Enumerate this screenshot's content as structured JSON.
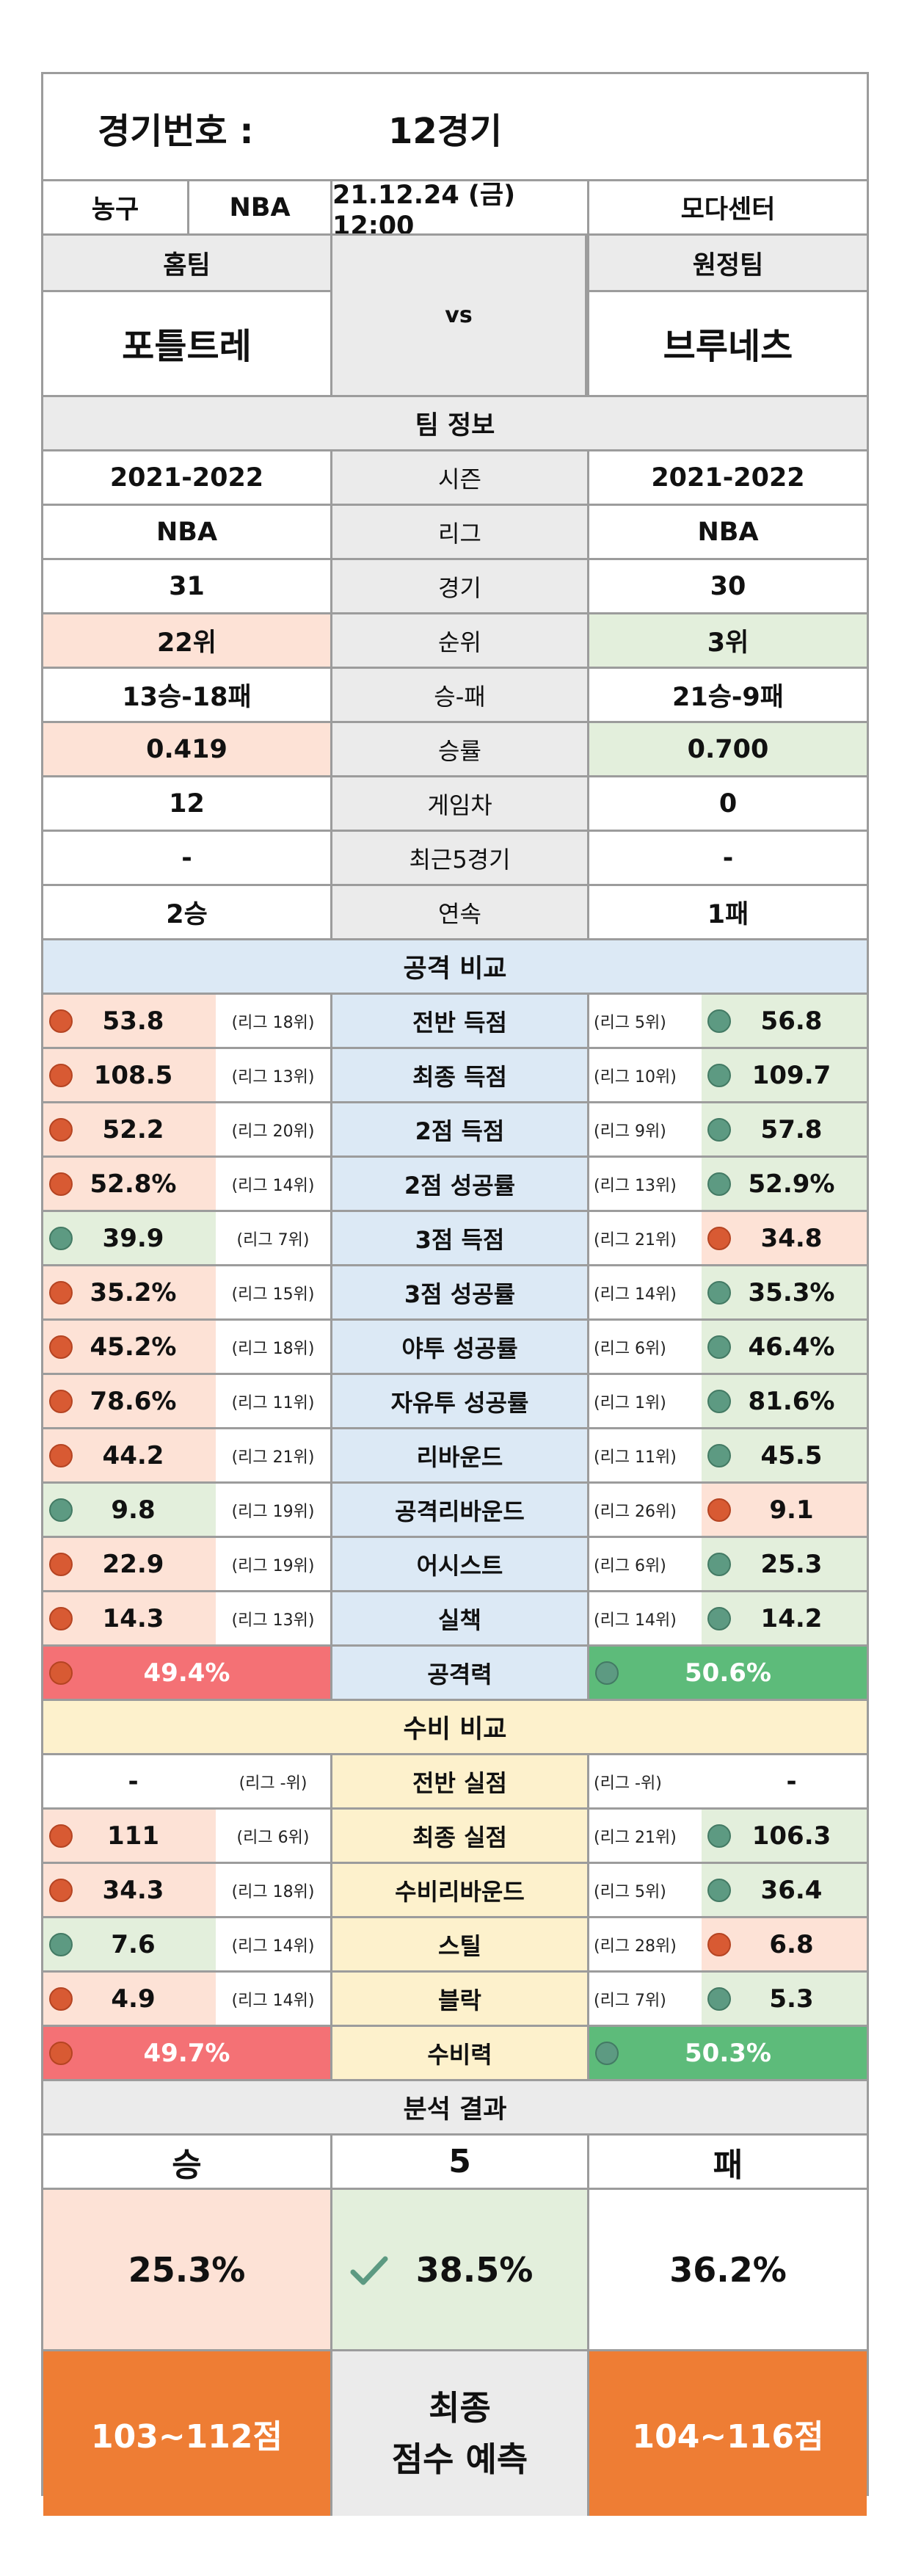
{
  "header": {
    "label": "경기번호 :",
    "game_no": "12경기"
  },
  "info": {
    "sport": "농구",
    "league": "NBA",
    "datetime": "21.12.24 (금) 12:00",
    "venue": "모다센터"
  },
  "teams": {
    "home_label": "홈팀",
    "away_label": "원정팀",
    "home": "포틀트레",
    "vs": "vs",
    "away": "브루네츠"
  },
  "team_info": {
    "title": "팀 정보",
    "rows": [
      {
        "label": "시즌",
        "home": "2021-2022",
        "away": "2021-2022"
      },
      {
        "label": "리그",
        "home": "NBA",
        "away": "NBA"
      },
      {
        "label": "경기",
        "home": "31",
        "away": "30"
      },
      {
        "label": "순위",
        "home": "22위",
        "away": "3위"
      },
      {
        "label": "승-패",
        "home": "13승-18패",
        "away": "21승-9패"
      },
      {
        "label": "승률",
        "home": "0.419",
        "away": "0.700"
      },
      {
        "label": "게임차",
        "home": "12",
        "away": "0"
      },
      {
        "label": "최근5경기",
        "home": "-",
        "away": "-"
      },
      {
        "label": "연속",
        "home": "2승",
        "away": "1패"
      }
    ]
  },
  "attack": {
    "title": "공격 비교",
    "rows": [
      {
        "label": "전반 득점",
        "home": "53.8",
        "home_rank": "(리그 18위)",
        "away": "56.8",
        "away_rank": "(리그 5위)"
      },
      {
        "label": "최종 득점",
        "home": "108.5",
        "home_rank": "(리그 13위)",
        "away": "109.7",
        "away_rank": "(리그 10위)"
      },
      {
        "label": "2점 득점",
        "home": "52.2",
        "home_rank": "(리그 20위)",
        "away": "57.8",
        "away_rank": "(리그 9위)"
      },
      {
        "label": "2점 성공률",
        "home": "52.8%",
        "home_rank": "(리그 14위)",
        "away": "52.9%",
        "away_rank": "(리그 13위)"
      },
      {
        "label": "3점 득점",
        "home": "39.9",
        "home_rank": "(리그 7위)",
        "away": "34.8",
        "away_rank": "(리그 21위)"
      },
      {
        "label": "3점 성공률",
        "home": "35.2%",
        "home_rank": "(리그 15위)",
        "away": "35.3%",
        "away_rank": "(리그 14위)"
      },
      {
        "label": "야투 성공률",
        "home": "45.2%",
        "home_rank": "(리그 18위)",
        "away": "46.4%",
        "away_rank": "(리그 6위)"
      },
      {
        "label": "자유투 성공률",
        "home": "78.6%",
        "home_rank": "(리그 11위)",
        "away": "81.6%",
        "away_rank": "(리그 1위)"
      },
      {
        "label": "리바운드",
        "home": "44.2",
        "home_rank": "(리그 21위)",
        "away": "45.5",
        "away_rank": "(리그 11위)"
      },
      {
        "label": "공격리바운드",
        "home": "9.8",
        "home_rank": "(리그 19위)",
        "away": "9.1",
        "away_rank": "(리그 26위)"
      },
      {
        "label": "어시스트",
        "home": "22.9",
        "home_rank": "(리그 19위)",
        "away": "25.3",
        "away_rank": "(리그 6위)"
      },
      {
        "label": "실책",
        "home": "14.3",
        "home_rank": "(리그 13위)",
        "away": "14.2",
        "away_rank": "(리그 14위)"
      }
    ],
    "power": {
      "label": "공격력",
      "home": "49.4%",
      "away": "50.6%"
    }
  },
  "defense": {
    "title": "수비 비교",
    "rows": [
      {
        "label": "전반 실점",
        "home": "-",
        "home_rank": "(리그 -위)",
        "away": "-",
        "away_rank": "(리그 -위)"
      },
      {
        "label": "최종 실점",
        "home": "111",
        "home_rank": "(리그 6위)",
        "away": "106.3",
        "away_rank": "(리그 21위)"
      },
      {
        "label": "수비리바운드",
        "home": "34.3",
        "home_rank": "(리그 18위)",
        "away": "36.4",
        "away_rank": "(리그 5위)"
      },
      {
        "label": "스틸",
        "home": "7.6",
        "home_rank": "(리그 14위)",
        "away": "6.8",
        "away_rank": "(리그 28위)"
      },
      {
        "label": "블락",
        "home": "4.9",
        "home_rank": "(리그 14위)",
        "away": "5.3",
        "away_rank": "(리그 7위)"
      }
    ],
    "power": {
      "label": "수비력",
      "home": "49.7%",
      "away": "50.3%"
    }
  },
  "result": {
    "title": "분석 결과",
    "win_label": "승",
    "draw_label": "5",
    "loss_label": "패",
    "win_pct": "25.3%",
    "draw_pct": "38.5%",
    "loss_pct": "36.2%",
    "check_icon": "check-icon",
    "home_score": "103~112점",
    "final_line1": "최종",
    "final_line2": "점수 예측",
    "away_score": "104~116점"
  },
  "colors": {
    "red_dot": "#d85a33",
    "green_dot": "#5d9a82",
    "orange": "#ee7d34"
  }
}
